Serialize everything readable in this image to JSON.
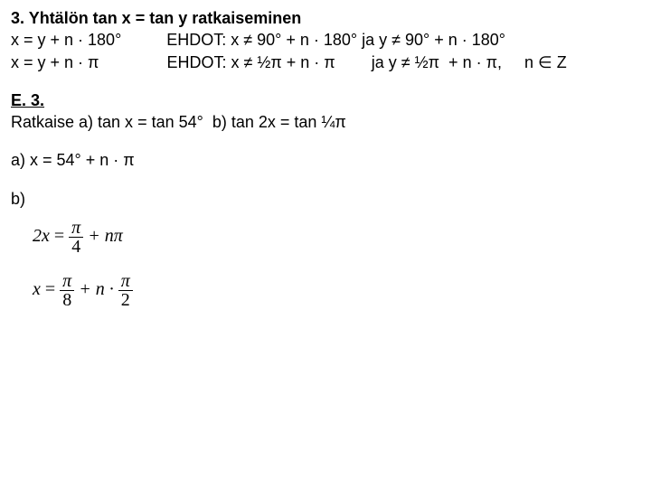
{
  "title": "3. Yhtälön tan x = tan y ratkaiseminen",
  "line1": "x = y + n · 180°          EHDOT: x ≠ 90° + n · 180° ja y ≠ 90° + n · 180°",
  "line2": "x = y + n · π               EHDOT: x ≠ ½π + n · π        ja y ≠ ½π  + n · π,     n ∈ Z",
  "exheader": "E. 3.",
  "exbody": "Ratkaise a) tan x = tan 54°  b) tan 2x = tan ¼π",
  "ansA": "a) x = 54° + n · π",
  "ansBlabel": "b)",
  "eq1_lhs": "2x",
  "eq1_eq": " = ",
  "eq1_frac_num": "π",
  "eq1_frac_den": "4",
  "eq1_rhs": " + nπ",
  "eq2_lhs": "x",
  "eq2_eq": " = ",
  "eq2_frac1_num": "π",
  "eq2_frac1_den": "8",
  "eq2_mid": " + n · ",
  "eq2_frac2_num": "π",
  "eq2_frac2_den": "2"
}
